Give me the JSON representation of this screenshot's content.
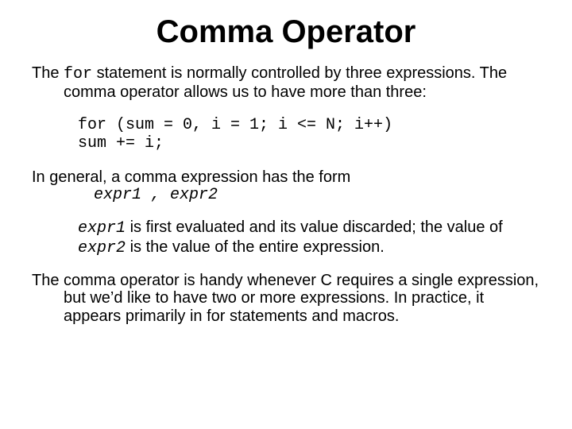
{
  "title": "Comma Operator",
  "p1_a": "The ",
  "p1_for": "for",
  "p1_b": " statement is normally controlled by three expressions. The comma operator allows us to have more than three:",
  "code": "for (sum = 0, i = 1; i <= N; i++)\nsum += i;",
  "p2": "In general, a comma expression has the form",
  "form_e1": "expr1",
  "form_sep": " , ",
  "form_e2": "expr2",
  "p3_e1": "expr1",
  "p3_a": " is first evaluated and its value discarded; the value of ",
  "p3_e2": "expr2",
  "p3_b": " is the value of the entire expression.",
  "p4": "The comma operator is handy whenever C requires a single expression, but we’d like to have two or more expressions. In practice, it appears primarily in for statements and macros."
}
